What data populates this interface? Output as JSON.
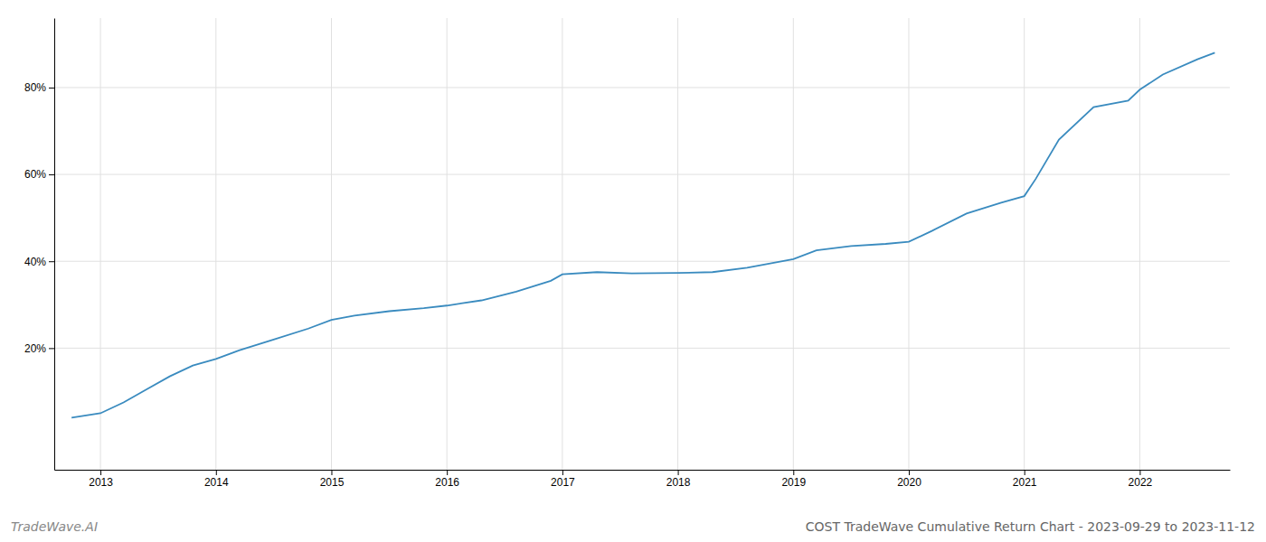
{
  "chart_data": {
    "type": "line",
    "title": "COST TradeWave Cumulative Return Chart - 2023-09-29 to 2023-11-12",
    "annotations": [
      "TradeWave.AI"
    ],
    "x": [
      2012.75,
      2013.0,
      2013.2,
      2013.4,
      2013.6,
      2013.8,
      2014.0,
      2014.2,
      2014.5,
      2014.8,
      2015.0,
      2015.2,
      2015.5,
      2015.8,
      2016.0,
      2016.3,
      2016.6,
      2016.9,
      2017.0,
      2017.3,
      2017.6,
      2018.0,
      2018.3,
      2018.6,
      2019.0,
      2019.2,
      2019.5,
      2019.8,
      2020.0,
      2020.2,
      2020.5,
      2020.8,
      2021.0,
      2021.1,
      2021.3,
      2021.6,
      2021.9,
      2022.0,
      2022.2,
      2022.5,
      2022.65
    ],
    "values": [
      4.0,
      5.0,
      7.5,
      10.5,
      13.5,
      16.0,
      17.5,
      19.5,
      22.0,
      24.5,
      26.5,
      27.5,
      28.5,
      29.2,
      29.8,
      31.0,
      33.0,
      35.5,
      37.0,
      37.5,
      37.2,
      37.3,
      37.5,
      38.5,
      40.5,
      42.5,
      43.5,
      44.0,
      44.5,
      47.0,
      51.0,
      53.5,
      55.0,
      59.0,
      68.0,
      75.5,
      77.0,
      79.5,
      83.0,
      86.5,
      88.0
    ],
    "color": "#3a8bbf",
    "xlim": [
      2012.6,
      2022.78
    ],
    "ylim": [
      -8,
      96
    ],
    "xticks": [
      2013,
      2014,
      2015,
      2016,
      2017,
      2018,
      2019,
      2020,
      2021,
      2022
    ],
    "yticks": [
      {
        "value": 20,
        "label": "20%"
      },
      {
        "value": 40,
        "label": "40%"
      },
      {
        "value": 60,
        "label": "60%"
      },
      {
        "value": 80,
        "label": "80%"
      }
    ],
    "grid": true
  }
}
